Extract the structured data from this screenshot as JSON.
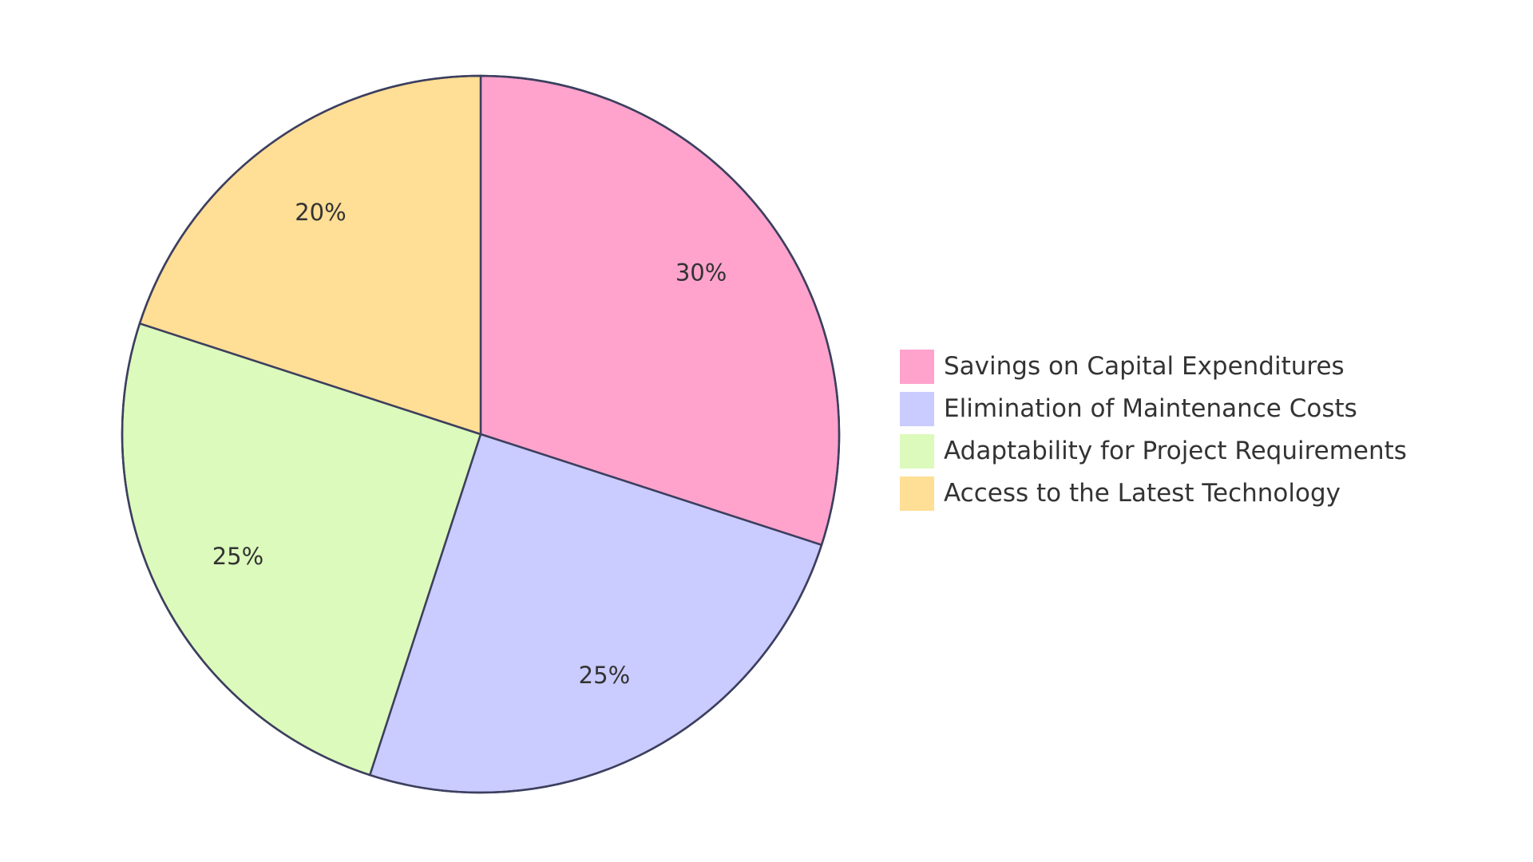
{
  "chart_data": {
    "type": "pie",
    "categories": [
      "Savings on Capital Expenditures",
      "Elimination of Maintenance Costs",
      "Adaptability for Project Requirements",
      "Access to the Latest Technology"
    ],
    "values": [
      30,
      25,
      25,
      20
    ],
    "value_labels": [
      "30%",
      "25%",
      "25%",
      "20%"
    ],
    "colors": [
      "#ffa3cd",
      "#cacbfe",
      "#dcfabb",
      "#ffde96"
    ],
    "legend": "right"
  }
}
